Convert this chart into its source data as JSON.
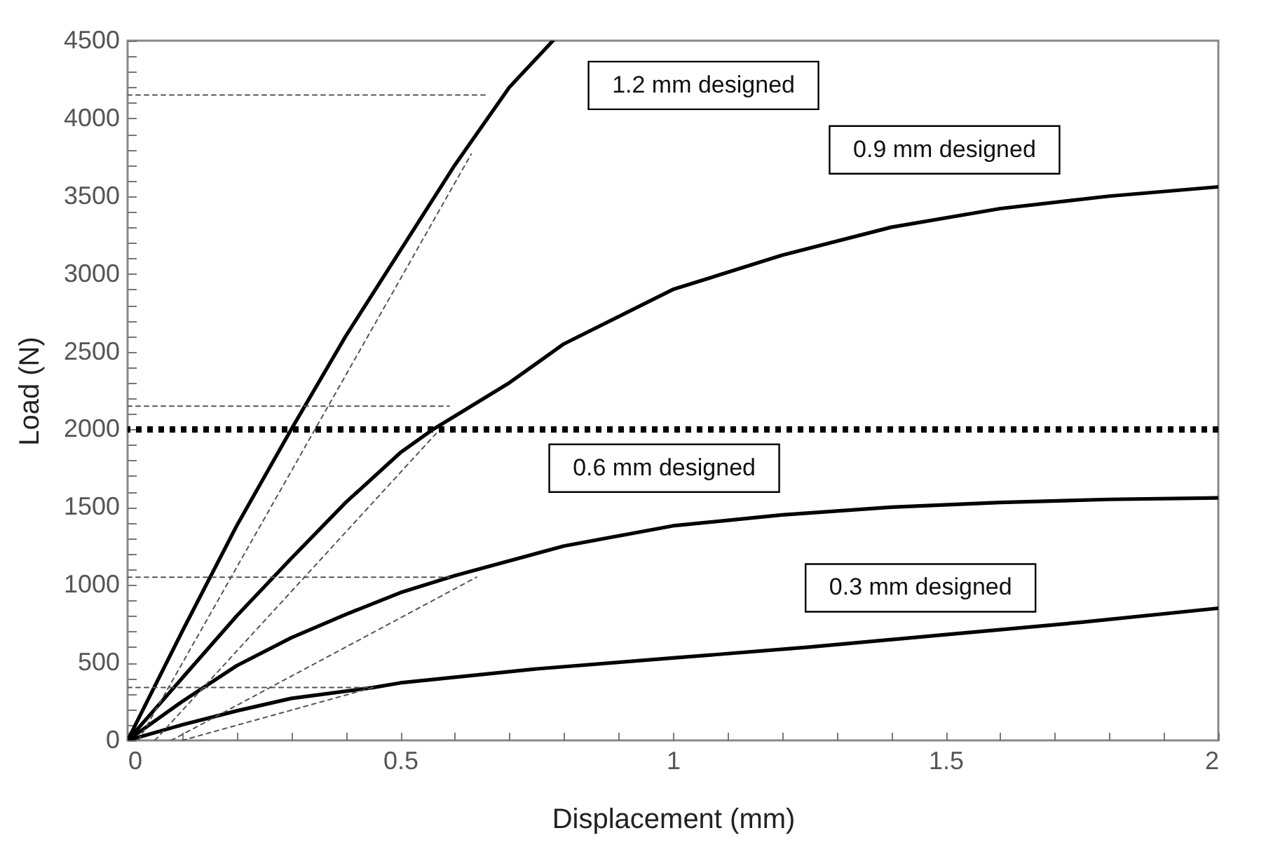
{
  "chart_data": {
    "type": "line",
    "xlabel": "Displacement (mm)",
    "ylabel": "Load (N)",
    "xlim": [
      0,
      2
    ],
    "ylim": [
      0,
      4500
    ],
    "xticks": [
      0,
      {
        "value": 0.1,
        "label": null
      },
      {
        "value": 0.2,
        "label": null
      },
      {
        "value": 0.3,
        "label": null
      },
      {
        "value": 0.4,
        "label": null
      },
      0.5,
      {
        "value": 0.6,
        "label": null
      },
      {
        "value": 0.7,
        "label": null
      },
      {
        "value": 0.8,
        "label": null
      },
      {
        "value": 0.9,
        "label": null
      },
      1,
      {
        "value": 1.1,
        "label": null
      },
      {
        "value": 1.2,
        "label": null
      },
      {
        "value": 1.3,
        "label": null
      },
      {
        "value": 1.4,
        "label": null
      },
      1.5,
      {
        "value": 1.6,
        "label": null
      },
      {
        "value": 1.7,
        "label": null
      },
      {
        "value": 1.8,
        "label": null
      },
      {
        "value": 1.9,
        "label": null
      },
      2
    ],
    "yticks": [
      0,
      {
        "value": 100,
        "label": null
      },
      {
        "value": 200,
        "label": null
      },
      {
        "value": 300,
        "label": null
      },
      {
        "value": 400,
        "label": null
      },
      500,
      {
        "value": 600,
        "label": null
      },
      {
        "value": 700,
        "label": null
      },
      {
        "value": 800,
        "label": null
      },
      {
        "value": 900,
        "label": null
      },
      1000,
      {
        "value": 1100,
        "label": null
      },
      {
        "value": 1200,
        "label": null
      },
      {
        "value": 1300,
        "label": null
      },
      {
        "value": 1400,
        "label": null
      },
      1500,
      {
        "value": 1600,
        "label": null
      },
      {
        "value": 1700,
        "label": null
      },
      {
        "value": 1800,
        "label": null
      },
      {
        "value": 1900,
        "label": null
      },
      2000,
      {
        "value": 2100,
        "label": null
      },
      {
        "value": 2200,
        "label": null
      },
      {
        "value": 2300,
        "label": null
      },
      {
        "value": 2400,
        "label": null
      },
      2500,
      {
        "value": 2600,
        "label": null
      },
      {
        "value": 2700,
        "label": null
      },
      {
        "value": 2800,
        "label": null
      },
      {
        "value": 2900,
        "label": null
      },
      3000,
      {
        "value": 3100,
        "label": null
      },
      {
        "value": 3200,
        "label": null
      },
      {
        "value": 3300,
        "label": null
      },
      {
        "value": 3400,
        "label": null
      },
      3500,
      {
        "value": 3600,
        "label": null
      },
      {
        "value": 3700,
        "label": null
      },
      {
        "value": 3800,
        "label": null
      },
      {
        "value": 3900,
        "label": null
      },
      4000,
      {
        "value": 4100,
        "label": null
      },
      {
        "value": 4200,
        "label": null
      },
      {
        "value": 4300,
        "label": null
      },
      {
        "value": 4400,
        "label": null
      },
      4500
    ],
    "grid": false,
    "marker": "none",
    "line_style": "solid",
    "series": [
      {
        "color": "#000000",
        "x": [
          0,
          0.1,
          0.2,
          0.3,
          0.4,
          0.5,
          0.6,
          0.7,
          0.78
        ],
        "values": [
          0,
          700,
          1380,
          2000,
          2600,
          3150,
          3700,
          4200,
          4500
        ]
      },
      {
        "color": "#000000",
        "x": [
          0,
          0.1,
          0.2,
          0.3,
          0.4,
          0.5,
          0.56,
          0.7,
          0.8,
          1.0,
          1.2,
          1.4,
          1.6,
          1.8,
          2.0
        ],
        "values": [
          0,
          400,
          800,
          1170,
          1530,
          1850,
          2000,
          2300,
          2550,
          2900,
          3120,
          3300,
          3420,
          3500,
          3560
        ]
      },
      {
        "color": "#000000",
        "x": [
          0,
          0.1,
          0.2,
          0.3,
          0.4,
          0.5,
          0.6,
          0.8,
          1.0,
          1.2,
          1.4,
          1.6,
          1.8,
          2.0
        ],
        "values": [
          0,
          250,
          480,
          660,
          810,
          950,
          1060,
          1250,
          1380,
          1450,
          1500,
          1530,
          1550,
          1560
        ]
      },
      {
        "color": "#000000",
        "x": [
          0,
          0.1,
          0.2,
          0.3,
          0.45,
          0.5,
          0.75,
          1.0,
          1.25,
          1.5,
          1.75,
          2.0
        ],
        "values": [
          0,
          100,
          190,
          270,
          340,
          370,
          460,
          530,
          600,
          680,
          760,
          850
        ]
      },
      {
        "color": "#555555",
        "line_style": "dashed",
        "x": [
          0.02,
          0.63
        ],
        "values": [
          0,
          3770
        ]
      },
      {
        "color": "#555555",
        "line_style": "dashed",
        "x": [
          0,
          0.66
        ],
        "values": [
          4150,
          4150
        ]
      },
      {
        "color": "#555555",
        "line_style": "dashed",
        "x": [
          0.05,
          0.57
        ],
        "values": [
          0,
          1990
        ]
      },
      {
        "color": "#555555",
        "line_style": "dashed",
        "x": [
          0,
          0.59
        ],
        "values": [
          2150,
          2150
        ]
      },
      {
        "color": "#555555",
        "line_style": "dashed",
        "x": [
          0.08,
          0.64
        ],
        "values": [
          0,
          1050
        ]
      },
      {
        "color": "#555555",
        "line_style": "dashed",
        "x": [
          0,
          0.59
        ],
        "values": [
          1050,
          1050
        ]
      },
      {
        "color": "#555555",
        "line_style": "dashed",
        "x": [
          0.1,
          0.45
        ],
        "values": [
          0,
          340
        ]
      },
      {
        "color": "#555555",
        "line_style": "dashed",
        "x": [
          0,
          0.45
        ],
        "values": [
          340,
          340
        ]
      }
    ],
    "ref_lines": [
      {
        "axis": "y",
        "value": 2000,
        "color": "#000000",
        "line_style": "dotted"
      }
    ],
    "annotations": [
      "1.2 mm designed",
      "0.9 mm designed",
      "0.6 mm designed",
      "0.3 mm designed"
    ]
  }
}
